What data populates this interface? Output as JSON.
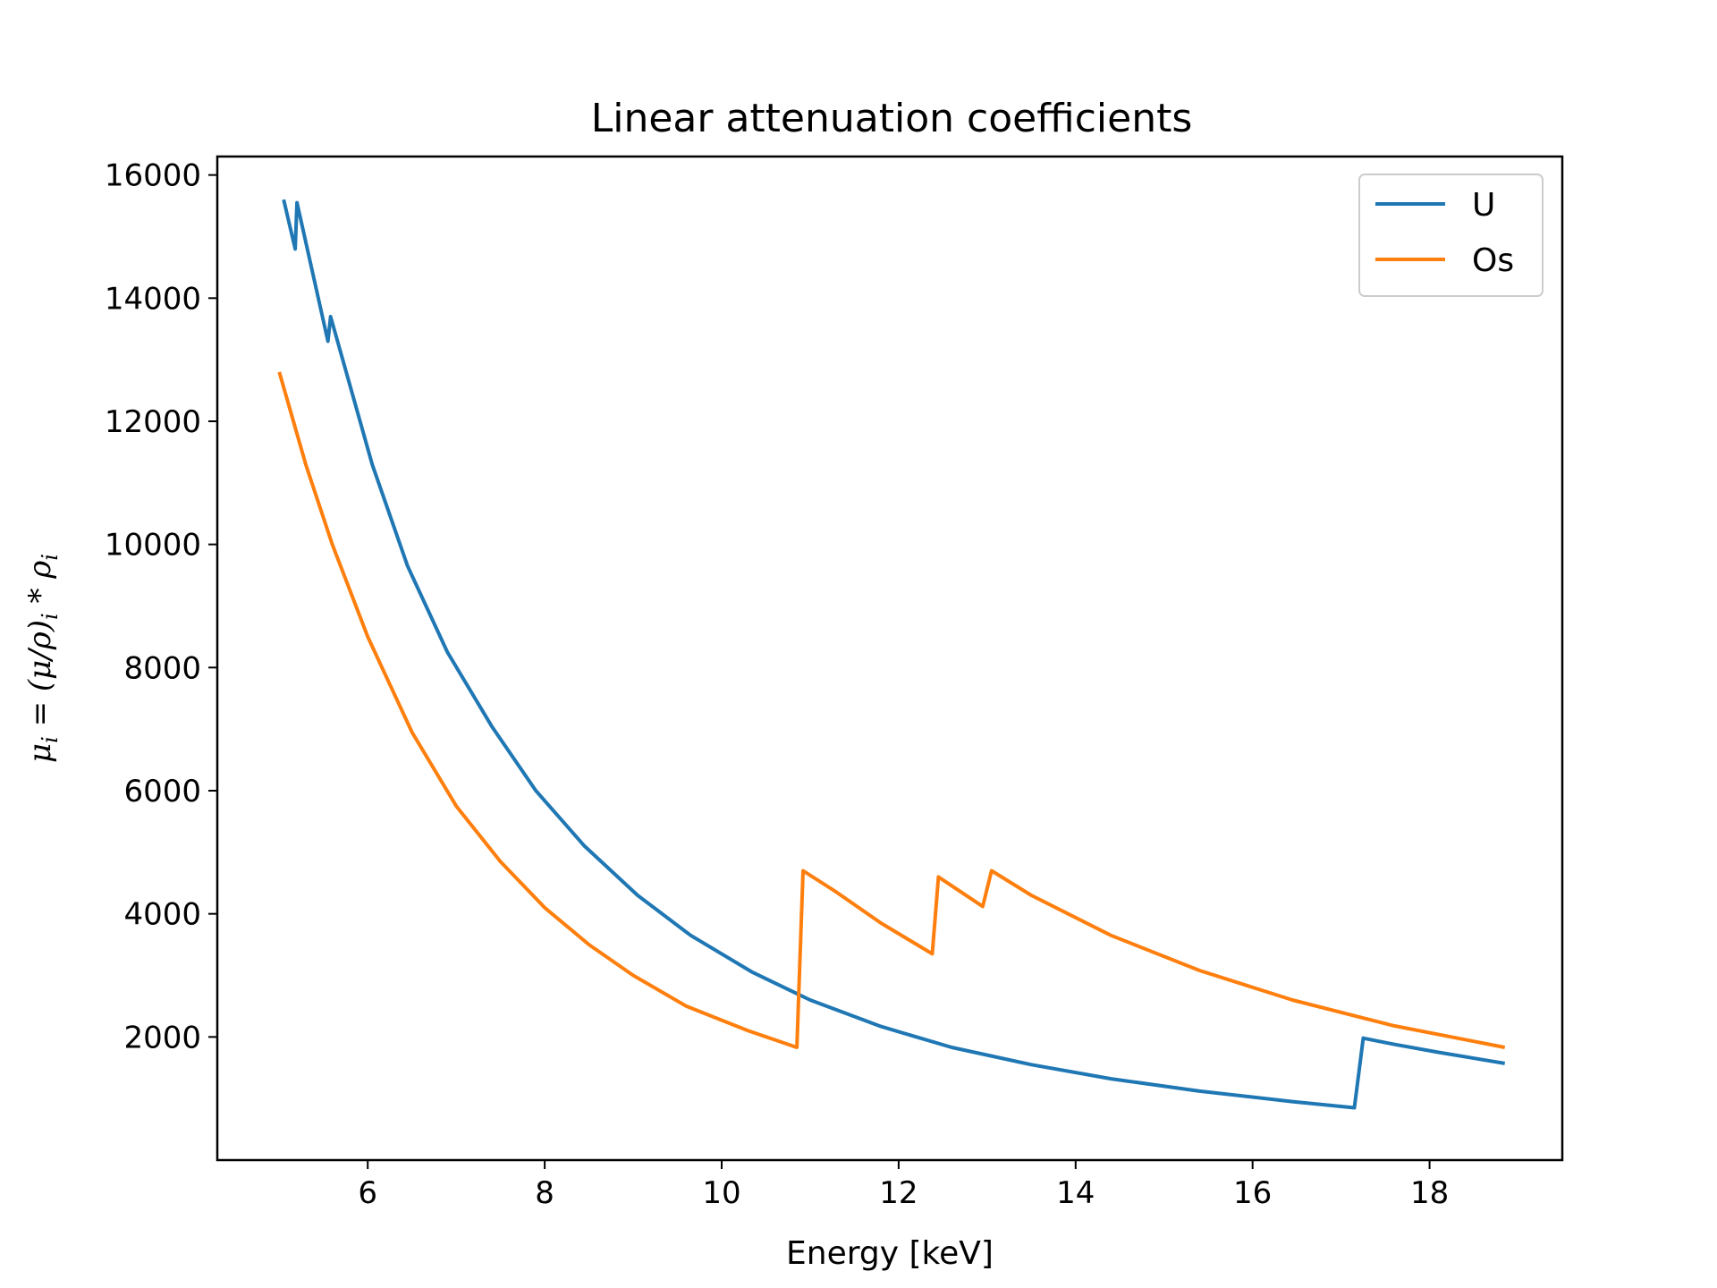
{
  "chart_data": {
    "type": "line",
    "title": "Linear attenuation coefficients",
    "xlabel": "Energy [keV]",
    "ylabel": "μi = (μ/ρ)i * ρi",
    "xlim": [
      4.3,
      19.5
    ],
    "ylim": [
      0,
      16300
    ],
    "xticks": [
      6,
      8,
      10,
      12,
      14,
      16,
      18
    ],
    "yticks": [
      2000,
      4000,
      6000,
      8000,
      10000,
      12000,
      14000,
      16000
    ],
    "grid": false,
    "legend_position": "top-right",
    "series": [
      {
        "name": "U",
        "color": "#1f77b4",
        "x": [
          5.05,
          5.18,
          5.2,
          5.55,
          5.58,
          6.05,
          6.45,
          6.9,
          7.4,
          7.9,
          8.45,
          9.05,
          9.65,
          10.35,
          11.0,
          11.8,
          12.6,
          13.5,
          14.4,
          15.4,
          16.45,
          17.15,
          17.25,
          17.6,
          18.1,
          18.85
        ],
        "y": [
          15600,
          14800,
          15550,
          13300,
          13700,
          11300,
          9650,
          8250,
          7050,
          6000,
          5100,
          4300,
          3650,
          3050,
          2600,
          2170,
          1830,
          1550,
          1320,
          1120,
          950,
          850,
          1980,
          1880,
          1750,
          1570
        ]
      },
      {
        "name": "Os",
        "color": "#ff7f0e",
        "x": [
          5.0,
          5.3,
          5.6,
          6.0,
          6.5,
          7.0,
          7.5,
          8.0,
          8.5,
          9.0,
          9.6,
          10.3,
          10.85,
          10.92,
          11.3,
          11.8,
          12.38,
          12.45,
          12.95,
          13.05,
          13.5,
          14.4,
          15.4,
          16.45,
          17.6,
          18.85
        ],
        "y": [
          12800,
          11300,
          10000,
          8500,
          6950,
          5750,
          4850,
          4100,
          3500,
          3000,
          2500,
          2100,
          1830,
          4700,
          4350,
          3850,
          3350,
          4600,
          4120,
          4700,
          4300,
          3650,
          3080,
          2600,
          2180,
          1830
        ]
      }
    ]
  }
}
